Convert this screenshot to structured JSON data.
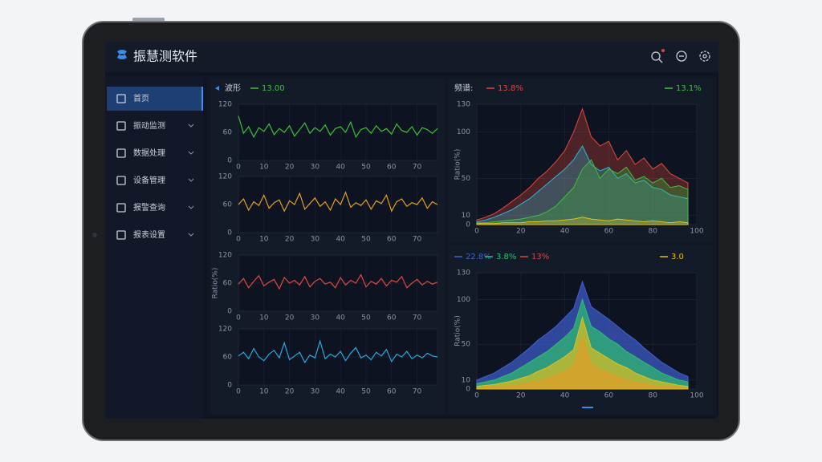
{
  "app": {
    "title": "振慧测软件"
  },
  "nav": [
    "首页",
    "振动监测",
    "数据处理",
    "设备管理",
    "报警查询",
    "报表设置"
  ],
  "chart_data": [
    {
      "type": "line",
      "title": "波形",
      "xlim": [
        0,
        78
      ],
      "xticks": [
        0,
        10,
        20,
        30,
        40,
        50,
        60,
        70
      ],
      "ylim": [
        0,
        120
      ],
      "yticks": [
        0,
        60,
        120
      ],
      "grid": true,
      "x": [
        0,
        2,
        4,
        6,
        8,
        10,
        12,
        14,
        16,
        18,
        20,
        22,
        24,
        26,
        28,
        30,
        32,
        34,
        36,
        38,
        40,
        42,
        44,
        46,
        48,
        50,
        52,
        54,
        56,
        58,
        60,
        62,
        64,
        66,
        68,
        70,
        72,
        74,
        76,
        78
      ],
      "series": [
        {
          "name": "13.00",
          "color": "#3fbf3a",
          "values": [
            95,
            58,
            72,
            50,
            70,
            62,
            78,
            55,
            68,
            60,
            74,
            52,
            66,
            80,
            58,
            70,
            62,
            76,
            54,
            68,
            72,
            60,
            82,
            50,
            66,
            70,
            58,
            74,
            62,
            68,
            56,
            78,
            64,
            60,
            72,
            54,
            70,
            66,
            58,
            68
          ]
        }
      ]
    },
    {
      "type": "line",
      "xlim": [
        0,
        78
      ],
      "xticks": [
        0,
        10,
        20,
        30,
        40,
        50,
        60,
        70
      ],
      "ylim": [
        0,
        120
      ],
      "yticks": [
        0,
        60,
        120
      ],
      "grid": true,
      "x": [
        0,
        2,
        4,
        6,
        8,
        10,
        12,
        14,
        16,
        18,
        20,
        22,
        24,
        26,
        28,
        30,
        32,
        34,
        36,
        38,
        40,
        42,
        44,
        46,
        48,
        50,
        52,
        54,
        56,
        58,
        60,
        62,
        64,
        66,
        68,
        70,
        72,
        74,
        76,
        78
      ],
      "series": [
        {
          "color": "#e0a020",
          "values": [
            60,
            72,
            48,
            66,
            58,
            80,
            52,
            64,
            70,
            46,
            68,
            60,
            84,
            50,
            62,
            74,
            56,
            66,
            48,
            72,
            60,
            86,
            54,
            64,
            58,
            70,
            50,
            68,
            62,
            80,
            46,
            66,
            72,
            56,
            64,
            60,
            74,
            52,
            66,
            60
          ]
        }
      ]
    },
    {
      "type": "line",
      "y_label": "Ratio(%)",
      "xlim": [
        0,
        78
      ],
      "xticks": [
        0,
        10,
        20,
        30,
        40,
        50,
        60,
        70
      ],
      "ylim": [
        0,
        120
      ],
      "yticks": [
        0,
        60,
        120
      ],
      "grid": true,
      "x": [
        0,
        2,
        4,
        6,
        8,
        10,
        12,
        14,
        16,
        18,
        20,
        22,
        24,
        26,
        28,
        30,
        32,
        34,
        36,
        38,
        40,
        42,
        44,
        46,
        48,
        50,
        52,
        54,
        56,
        58,
        60,
        62,
        64,
        66,
        68,
        70,
        72,
        74,
        76,
        78
      ],
      "series": [
        {
          "color": "#e0483c",
          "values": [
            58,
            70,
            50,
            64,
            76,
            54,
            62,
            68,
            48,
            72,
            60,
            66,
            56,
            74,
            52,
            64,
            70,
            58,
            62,
            50,
            72,
            56,
            66,
            60,
            78,
            52,
            64,
            58,
            70,
            54,
            66,
            62,
            74,
            50,
            60,
            68,
            56,
            64,
            58,
            62
          ]
        }
      ]
    },
    {
      "type": "line",
      "xlim": [
        0,
        78
      ],
      "xticks": [
        0,
        10,
        20,
        30,
        40,
        50,
        60,
        70
      ],
      "ylim": [
        0,
        120
      ],
      "yticks": [
        0,
        60,
        120
      ],
      "grid": true,
      "x": [
        0,
        2,
        4,
        6,
        8,
        10,
        12,
        14,
        16,
        18,
        20,
        22,
        24,
        26,
        28,
        30,
        32,
        34,
        36,
        38,
        40,
        42,
        44,
        46,
        48,
        50,
        52,
        54,
        56,
        58,
        60,
        62,
        64,
        66,
        68,
        70,
        72,
        74,
        76,
        78
      ],
      "series": [
        {
          "color": "#2aa8e0",
          "values": [
            62,
            70,
            56,
            78,
            60,
            52,
            66,
            74,
            58,
            90,
            54,
            62,
            70,
            48,
            64,
            58,
            94,
            56,
            66,
            60,
            72,
            52,
            68,
            80,
            58,
            64,
            54,
            70,
            62,
            76,
            50,
            66,
            60,
            72,
            56,
            64,
            58,
            68,
            62,
            60
          ]
        }
      ]
    },
    {
      "type": "area",
      "title": "频谱:",
      "y_label": "Ratio(%)",
      "xlim": [
        0,
        100
      ],
      "xticks": [
        0,
        20,
        40,
        60,
        80,
        100
      ],
      "ylim": [
        0,
        130
      ],
      "yticks": [
        0,
        10,
        50,
        100,
        130
      ],
      "grid": true,
      "x": [
        0,
        4,
        8,
        12,
        16,
        20,
        24,
        28,
        32,
        36,
        40,
        44,
        48,
        52,
        56,
        60,
        64,
        68,
        72,
        76,
        80,
        84,
        88,
        92,
        96
      ],
      "series": [
        {
          "name": "13.8%",
          "color": "#e0483c",
          "values": [
            5,
            8,
            12,
            18,
            25,
            32,
            40,
            50,
            58,
            68,
            80,
            100,
            125,
            95,
            85,
            90,
            70,
            80,
            65,
            72,
            60,
            66,
            55,
            50,
            45
          ]
        },
        {
          "color": "#2ab8d8",
          "values": [
            3,
            5,
            8,
            12,
            16,
            22,
            28,
            36,
            44,
            52,
            60,
            70,
            85,
            65,
            58,
            62,
            50,
            55,
            45,
            48,
            40,
            38,
            32,
            30,
            28
          ]
        },
        {
          "name": "13.1%",
          "color": "#3fbf3a",
          "values": [
            2,
            2,
            3,
            4,
            5,
            6,
            8,
            10,
            14,
            20,
            30,
            40,
            60,
            70,
            50,
            60,
            55,
            62,
            48,
            52,
            45,
            50,
            40,
            42,
            38
          ]
        },
        {
          "color": "#e0c020",
          "values": [
            1,
            1,
            1,
            2,
            2,
            2,
            3,
            3,
            4,
            4,
            5,
            6,
            8,
            6,
            5,
            4,
            6,
            5,
            4,
            3,
            4,
            3,
            2,
            3,
            2
          ]
        }
      ]
    },
    {
      "type": "area",
      "y_label": "Ratio(%)",
      "xlim": [
        0,
        100
      ],
      "xticks": [
        0,
        20,
        40,
        60,
        80,
        100
      ],
      "ylim": [
        0,
        130
      ],
      "yticks": [
        0,
        10,
        50,
        100,
        130
      ],
      "grid": true,
      "x": [
        0,
        4,
        8,
        12,
        16,
        20,
        24,
        28,
        32,
        36,
        40,
        44,
        48,
        52,
        56,
        60,
        64,
        68,
        72,
        76,
        80,
        84,
        88,
        92,
        96
      ],
      "series": [
        {
          "name": "22.8%",
          "color": "#4060d0",
          "values": [
            10,
            14,
            18,
            24,
            30,
            38,
            46,
            55,
            62,
            70,
            80,
            90,
            120,
            92,
            85,
            78,
            70,
            62,
            55,
            46,
            38,
            30,
            24,
            18,
            14
          ]
        },
        {
          "name": "3.8%",
          "color": "#2ec070",
          "values": [
            6,
            8,
            10,
            14,
            18,
            24,
            30,
            36,
            42,
            50,
            58,
            68,
            100,
            70,
            64,
            56,
            50,
            42,
            36,
            30,
            24,
            18,
            14,
            10,
            8
          ]
        },
        {
          "name": "13%",
          "color": "#e0483c",
          "values": [
            1,
            2,
            2,
            3,
            4,
            5,
            7,
            9,
            12,
            16,
            20,
            26,
            60,
            28,
            22,
            18,
            14,
            10,
            8,
            6,
            4,
            3,
            2,
            2,
            1
          ]
        },
        {
          "name": "3.0",
          "color": "#e0c020",
          "values": [
            3,
            4,
            5,
            7,
            9,
            12,
            15,
            20,
            24,
            30,
            36,
            44,
            80,
            46,
            40,
            34,
            28,
            24,
            18,
            14,
            10,
            8,
            6,
            4,
            3
          ]
        }
      ]
    }
  ]
}
